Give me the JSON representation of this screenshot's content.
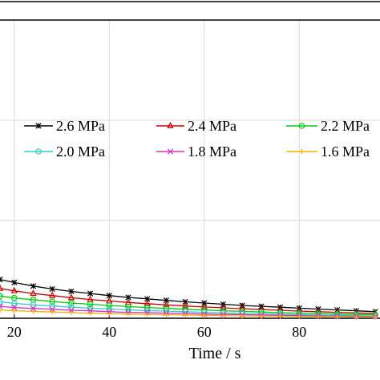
{
  "chart_data": {
    "type": "line",
    "xlabel": "Time / s",
    "ylabel": "",
    "xlim": [
      17,
      97
    ],
    "ylim": [
      0,
      1
    ],
    "grid": true,
    "legend_placement": "top",
    "x_ticks": [
      20,
      40,
      60,
      80
    ],
    "x": [
      17,
      20,
      24,
      28,
      32,
      36,
      40,
      44,
      48,
      52,
      56,
      60,
      64,
      68,
      72,
      76,
      80,
      84,
      88,
      92,
      96
    ],
    "series": [
      {
        "name": "2.6 MPa",
        "color": "#000000",
        "marker": "asterisk",
        "values": [
          0.13,
          0.12,
          0.108,
          0.098,
          0.09,
          0.083,
          0.076,
          0.07,
          0.065,
          0.06,
          0.055,
          0.051,
          0.047,
          0.043,
          0.04,
          0.037,
          0.034,
          0.031,
          0.028,
          0.025,
          0.022
        ]
      },
      {
        "name": "2.4 MPa",
        "color": "#cc0000",
        "marker": "triangle",
        "values": [
          0.1,
          0.092,
          0.083,
          0.076,
          0.069,
          0.063,
          0.058,
          0.053,
          0.049,
          0.045,
          0.041,
          0.038,
          0.035,
          0.032,
          0.029,
          0.027,
          0.024,
          0.022,
          0.02,
          0.018,
          0.016
        ]
      },
      {
        "name": "2.2 MPa",
        "color": "#00cc00",
        "marker": "circle",
        "values": [
          0.075,
          0.068,
          0.062,
          0.056,
          0.051,
          0.047,
          0.043,
          0.039,
          0.036,
          0.033,
          0.03,
          0.028,
          0.025,
          0.023,
          0.021,
          0.019,
          0.017,
          0.016,
          0.014,
          0.013,
          0.012
        ]
      },
      {
        "name": "2.0 MPa",
        "color": "#33cccc",
        "marker": "circle",
        "values": [
          0.055,
          0.05,
          0.045,
          0.041,
          0.037,
          0.034,
          0.031,
          0.028,
          0.026,
          0.024,
          0.022,
          0.02,
          0.018,
          0.016,
          0.015,
          0.014,
          0.012,
          0.011,
          0.01,
          0.009,
          0.008
        ]
      },
      {
        "name": "1.8 MPa",
        "color": "#cc33cc",
        "marker": "x",
        "values": [
          0.04,
          0.036,
          0.033,
          0.03,
          0.027,
          0.025,
          0.022,
          0.02,
          0.019,
          0.017,
          0.016,
          0.014,
          0.013,
          0.012,
          0.011,
          0.01,
          0.009,
          0.008,
          0.007,
          0.006,
          0.006
        ]
      },
      {
        "name": "1.6 MPa",
        "color": "#ffaa00",
        "marker": "plus",
        "values": [
          0.028,
          0.025,
          0.023,
          0.021,
          0.019,
          0.017,
          0.015,
          0.014,
          0.013,
          0.012,
          0.011,
          0.01,
          0.009,
          0.008,
          0.007,
          0.007,
          0.006,
          0.005,
          0.005,
          0.004,
          0.004
        ]
      }
    ]
  }
}
